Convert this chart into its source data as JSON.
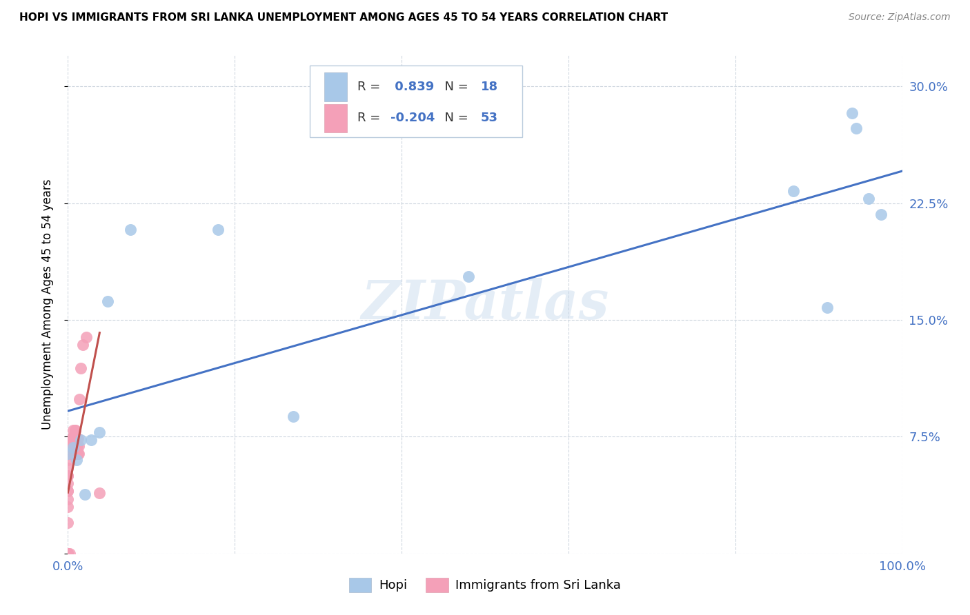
{
  "title": "HOPI VS IMMIGRANTS FROM SRI LANKA UNEMPLOYMENT AMONG AGES 45 TO 54 YEARS CORRELATION CHART",
  "source": "Source: ZipAtlas.com",
  "ylabel": "Unemployment Among Ages 45 to 54 years",
  "xlim": [
    0.0,
    1.0
  ],
  "ylim": [
    0.0,
    0.32
  ],
  "xticks": [
    0.0,
    0.2,
    0.4,
    0.6,
    0.8,
    1.0
  ],
  "xtick_labels": [
    "0.0%",
    "",
    "",
    "",
    "",
    "100.0%"
  ],
  "yticks": [
    0.0,
    0.075,
    0.15,
    0.225,
    0.3
  ],
  "ytick_labels": [
    "",
    "7.5%",
    "15.0%",
    "22.5%",
    "30.0%"
  ],
  "hopi_r": 0.839,
  "hopi_n": 18,
  "sri_lanka_r": -0.204,
  "sri_lanka_n": 53,
  "hopi_color": "#a8c8e8",
  "hopi_line_color": "#4472c4",
  "sri_lanka_color": "#f4a0b8",
  "sri_lanka_line_color": "#c0504d",
  "watermark": "ZIPatlas",
  "hopi_x": [
    0.0,
    0.006,
    0.01,
    0.015,
    0.02,
    0.028,
    0.038,
    0.048,
    0.075,
    0.18,
    0.27,
    0.48,
    0.87,
    0.91,
    0.94,
    0.945,
    0.96,
    0.975
  ],
  "hopi_y": [
    0.064,
    0.068,
    0.06,
    0.073,
    0.038,
    0.073,
    0.078,
    0.162,
    0.208,
    0.208,
    0.088,
    0.178,
    0.233,
    0.158,
    0.283,
    0.273,
    0.228,
    0.218
  ],
  "sri_lanka_x": [
    0.0,
    0.0,
    0.0,
    0.0,
    0.0,
    0.0,
    0.0,
    0.0,
    0.0,
    0.0,
    0.0,
    0.0,
    0.0,
    0.0,
    0.0,
    0.0,
    0.0,
    0.002,
    0.003,
    0.004,
    0.004,
    0.005,
    0.005,
    0.006,
    0.006,
    0.006,
    0.007,
    0.007,
    0.007,
    0.007,
    0.008,
    0.008,
    0.008,
    0.009,
    0.009,
    0.009,
    0.009,
    0.009,
    0.01,
    0.01,
    0.01,
    0.01,
    0.011,
    0.011,
    0.012,
    0.012,
    0.013,
    0.013,
    0.014,
    0.015,
    0.018,
    0.022,
    0.038
  ],
  "sri_lanka_y": [
    0.0,
    0.0,
    0.0,
    0.0,
    0.0,
    0.0,
    0.0,
    0.02,
    0.03,
    0.035,
    0.04,
    0.04,
    0.045,
    0.05,
    0.05,
    0.055,
    0.06,
    0.0,
    0.064,
    0.068,
    0.07,
    0.07,
    0.074,
    0.074,
    0.075,
    0.079,
    0.064,
    0.064,
    0.069,
    0.069,
    0.064,
    0.064,
    0.069,
    0.069,
    0.074,
    0.074,
    0.079,
    0.079,
    0.064,
    0.064,
    0.069,
    0.074,
    0.064,
    0.069,
    0.064,
    0.074,
    0.064,
    0.069,
    0.099,
    0.119,
    0.134,
    0.139,
    0.039
  ],
  "background_color": "#ffffff",
  "grid_color": "#d0d8e0",
  "legend_box_color": "#e8eef4"
}
